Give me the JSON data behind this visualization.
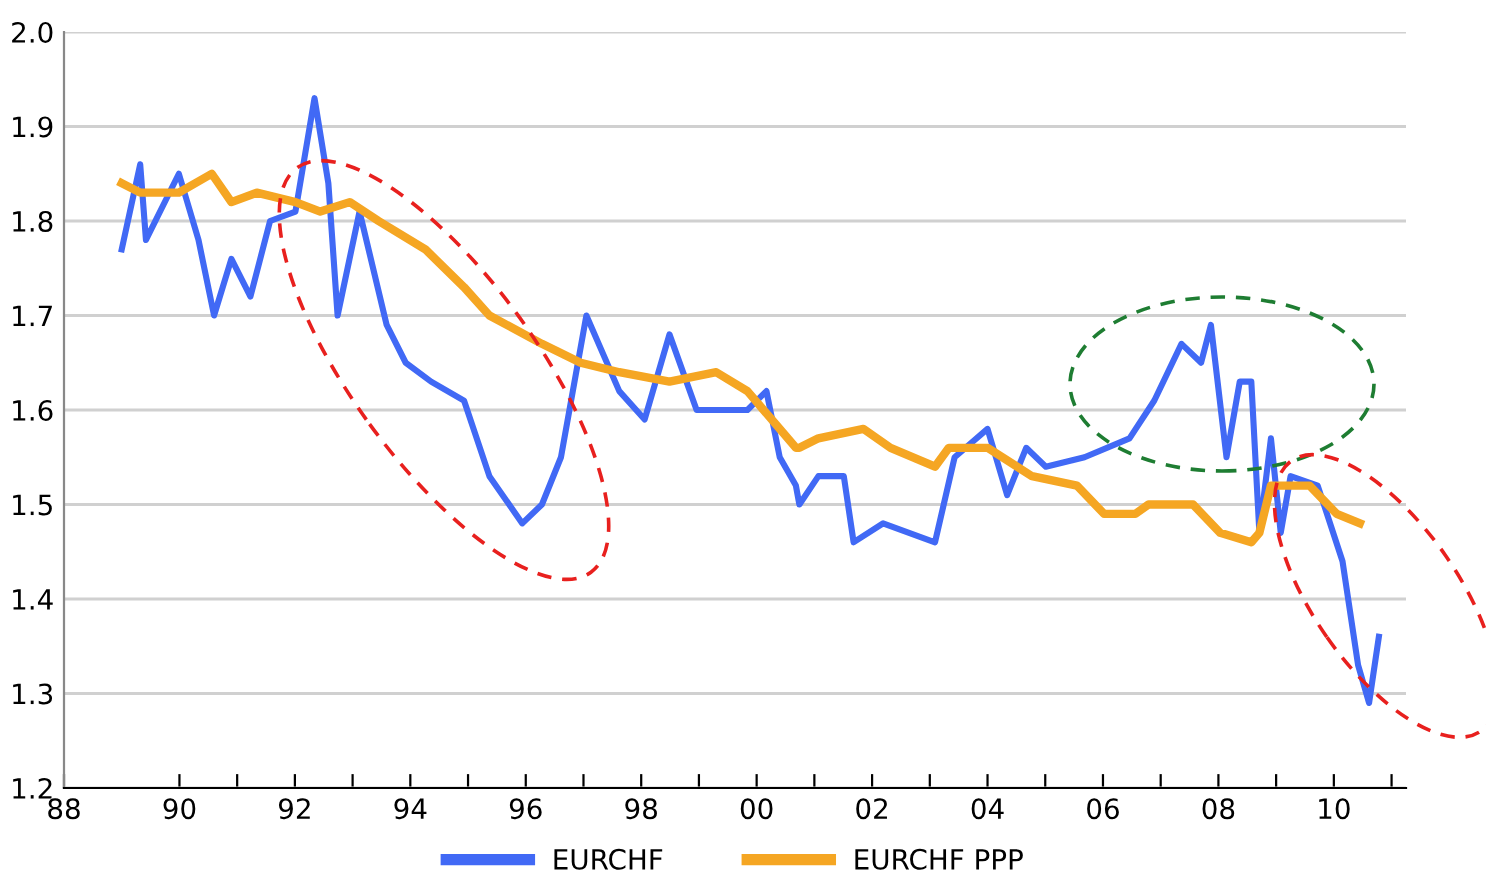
{
  "chart_data": {
    "type": "line",
    "xlim": [
      1988,
      2011.25
    ],
    "xticks": [
      {
        "value": 1988,
        "label": "88"
      },
      {
        "value": 1990,
        "label": "90"
      },
      {
        "value": 1991,
        "label": null
      },
      {
        "value": 1992,
        "label": "92"
      },
      {
        "value": 1993,
        "label": null
      },
      {
        "value": 1994,
        "label": "94"
      },
      {
        "value": 1995,
        "label": null
      },
      {
        "value": 1996,
        "label": "96"
      },
      {
        "value": 1997,
        "label": null
      },
      {
        "value": 1998,
        "label": "98"
      },
      {
        "value": 1999,
        "label": null
      },
      {
        "value": 2000,
        "label": "00"
      },
      {
        "value": 2001,
        "label": null
      },
      {
        "value": 2002,
        "label": "02"
      },
      {
        "value": 2003,
        "label": null
      },
      {
        "value": 2004,
        "label": "04"
      },
      {
        "value": 2005,
        "label": null
      },
      {
        "value": 2006,
        "label": "06"
      },
      {
        "value": 2007,
        "label": null
      },
      {
        "value": 2008,
        "label": "08"
      },
      {
        "value": 2009,
        "label": null
      },
      {
        "value": 2010,
        "label": "10"
      },
      {
        "value": 2011,
        "label": null
      }
    ],
    "ylim": [
      1.2,
      2.0
    ],
    "yticks": [
      {
        "value": 1.2,
        "label": "1.2"
      },
      {
        "value": 1.3,
        "label": "1.3"
      },
      {
        "value": 1.4,
        "label": "1.4"
      },
      {
        "value": 1.5,
        "label": "1.5"
      },
      {
        "value": 1.6,
        "label": "1.6"
      },
      {
        "value": 1.7,
        "label": "1.7"
      },
      {
        "value": 1.8,
        "label": "1.8"
      },
      {
        "value": 1.9,
        "label": "1.9"
      },
      {
        "value": 2.0,
        "label": "2.0"
      }
    ],
    "grid": "y",
    "legend": "bottom",
    "marker": "none",
    "line_style": "solid",
    "series": [
      {
        "name": "EURCHF",
        "color": "#4169f5",
        "x": [
          1989.0,
          1989.32,
          1989.42,
          1989.99,
          1990.33,
          1990.6,
          1990.9,
          1991.23,
          1991.57,
          1992.01,
          1992.34,
          1992.58,
          1992.74,
          1993.12,
          1993.59,
          1993.92,
          1994.36,
          1994.93,
          1995.37,
          1995.94,
          1996.28,
          1996.61,
          1997.05,
          1997.62,
          1998.06,
          1998.49,
          1998.96,
          1999.84,
          2000.17,
          2000.4,
          2000.68,
          2000.74,
          2001.07,
          2001.51,
          2001.68,
          2002.19,
          2003.09,
          2003.43,
          2004.0,
          2004.34,
          2004.67,
          2005.01,
          2005.68,
          2006.46,
          2006.89,
          2007.36,
          2007.7,
          2007.87,
          2008.14,
          2008.37,
          2008.57,
          2008.71,
          2008.91,
          2009.08,
          2009.25,
          2009.72,
          2010.15,
          2010.42,
          2010.61,
          2010.78
        ],
        "values": [
          1.77,
          1.86,
          1.78,
          1.85,
          1.78,
          1.7,
          1.76,
          1.72,
          1.8,
          1.81,
          1.93,
          1.84,
          1.7,
          1.81,
          1.69,
          1.65,
          1.63,
          1.61,
          1.53,
          1.48,
          1.5,
          1.55,
          1.7,
          1.62,
          1.59,
          1.68,
          1.6,
          1.6,
          1.62,
          1.55,
          1.52,
          1.5,
          1.53,
          1.53,
          1.46,
          1.48,
          1.46,
          1.55,
          1.58,
          1.51,
          1.56,
          1.54,
          1.55,
          1.57,
          1.61,
          1.67,
          1.65,
          1.69,
          1.55,
          1.63,
          1.63,
          1.47,
          1.57,
          1.47,
          1.53,
          1.52,
          1.44,
          1.33,
          1.29,
          1.36
        ]
      },
      {
        "name": "EURCHF PPP",
        "color": "#f5a623",
        "x": [
          1989.0,
          1989.32,
          1989.99,
          1990.56,
          1990.9,
          1991.34,
          1992.01,
          1992.44,
          1992.95,
          1993.45,
          1994.26,
          1994.93,
          1995.37,
          1996.28,
          1996.95,
          1997.62,
          1998.49,
          1999.3,
          1999.84,
          2000.68,
          2000.74,
          2001.07,
          2001.85,
          2002.32,
          2003.09,
          2003.33,
          2004.0,
          2004.77,
          2005.55,
          2006.02,
          2006.56,
          2006.79,
          2007.56,
          2008.03,
          2008.57,
          2008.71,
          2008.91,
          2009.58,
          2010.05,
          2010.45
        ],
        "values": [
          1.84,
          1.83,
          1.83,
          1.85,
          1.82,
          1.83,
          1.82,
          1.81,
          1.82,
          1.8,
          1.77,
          1.73,
          1.7,
          1.67,
          1.65,
          1.64,
          1.63,
          1.64,
          1.62,
          1.56,
          1.56,
          1.57,
          1.58,
          1.56,
          1.54,
          1.56,
          1.56,
          1.53,
          1.52,
          1.49,
          1.49,
          1.5,
          1.5,
          1.47,
          1.46,
          1.47,
          1.52,
          1.52,
          1.49,
          1.48
        ]
      }
    ]
  }
}
